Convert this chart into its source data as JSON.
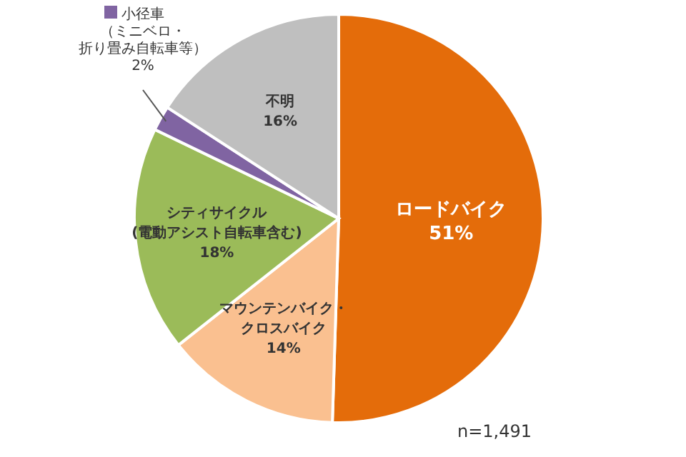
{
  "chart_data": {
    "type": "pie",
    "categories": [
      "ロードバイク",
      "マウンテンバイク・クロスバイク",
      "シティサイクル(電動アシスト自転車含む)",
      "小径車（ミニベロ・折り畳み自転車等）",
      "不明"
    ],
    "values": [
      51,
      14,
      18,
      2,
      16
    ],
    "value_labels": [
      "51%",
      "14%",
      "18%",
      "2%",
      "16%"
    ],
    "colors": [
      "#e46c0a",
      "#fac090",
      "#9bbb59",
      "#8064a2",
      "#bfbfbf"
    ],
    "annotations": [
      "n=1,491"
    ]
  }
}
